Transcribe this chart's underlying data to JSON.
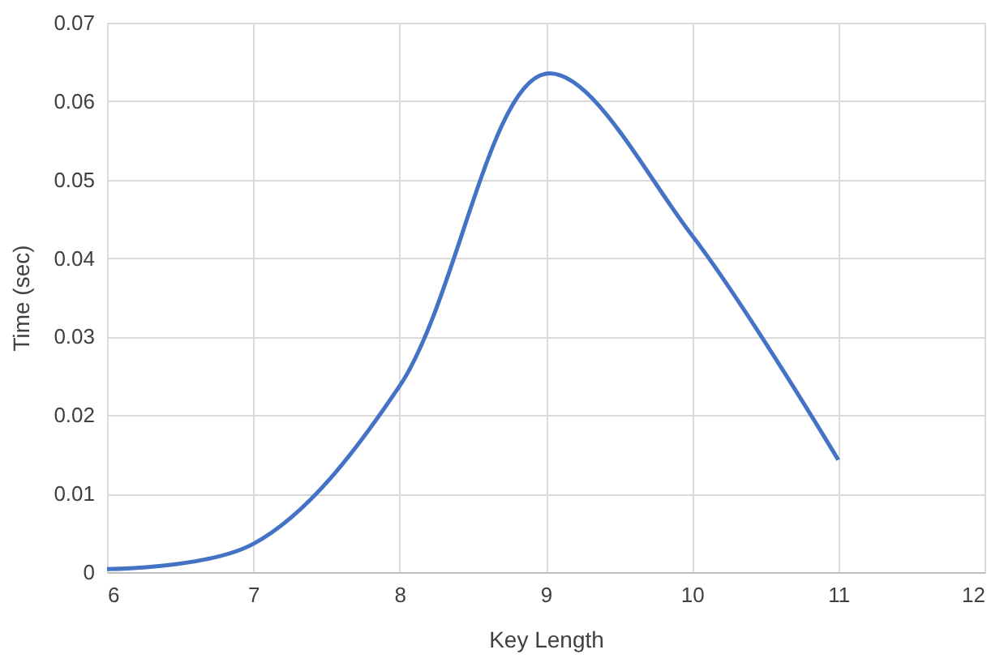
{
  "chart_data": {
    "type": "line",
    "xlabel": "Key Length",
    "ylabel": "Time (sec)",
    "x": [
      6,
      7,
      8,
      9,
      10,
      11
    ],
    "series": [
      {
        "color": "#4472c4",
        "values": [
          0.0004,
          0.0036,
          0.0237,
          0.0635,
          0.0429,
          0.0143
        ]
      }
    ],
    "xlim": [
      6,
      12
    ],
    "xticks": [
      6,
      7,
      8,
      9,
      10,
      11,
      12
    ],
    "ylim": [
      0,
      0.07
    ],
    "yticks": [
      0,
      0.01,
      0.02,
      0.03,
      0.04,
      0.05,
      0.06,
      0.07
    ],
    "grid": true,
    "marker": "none",
    "line_style": "solid"
  }
}
